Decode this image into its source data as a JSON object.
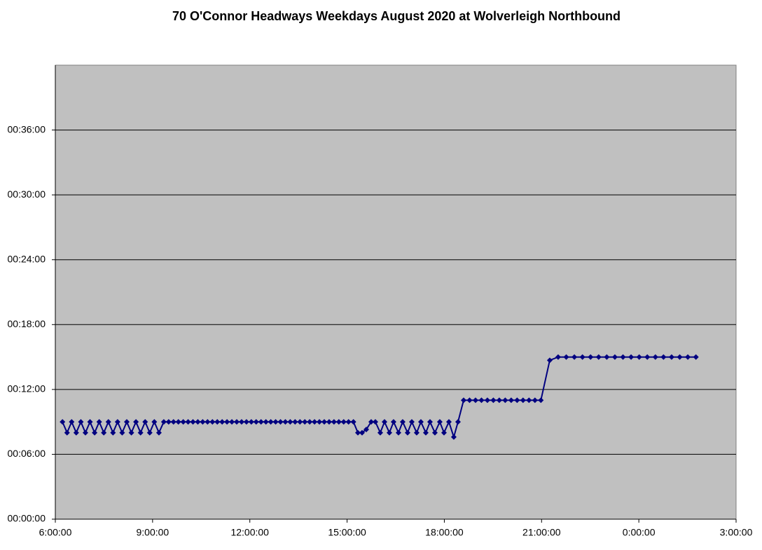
{
  "chart_data": {
    "type": "line",
    "title": "70 O'Connor Headways Weekdays August 2020 at Wolverleigh Northbound",
    "x": [
      6.22,
      6.362,
      6.503,
      6.645,
      6.787,
      6.928,
      7.07,
      7.212,
      7.354,
      7.495,
      7.637,
      7.779,
      7.92,
      8.062,
      8.204,
      8.346,
      8.487,
      8.629,
      8.771,
      8.912,
      9.054,
      9.196,
      9.346,
      9.496,
      9.646,
      9.796,
      9.946,
      10.096,
      10.246,
      10.396,
      10.546,
      10.696,
      10.846,
      10.996,
      11.146,
      11.296,
      11.446,
      11.596,
      11.746,
      11.896,
      12.046,
      12.196,
      12.346,
      12.496,
      12.646,
      12.796,
      12.946,
      13.096,
      13.246,
      13.396,
      13.546,
      13.696,
      13.846,
      13.996,
      14.146,
      14.296,
      14.446,
      14.596,
      14.746,
      14.896,
      15.046,
      15.196,
      15.333,
      15.462,
      15.592,
      15.743,
      15.873,
      16.024,
      16.154,
      16.305,
      16.434,
      16.586,
      16.715,
      16.866,
      16.996,
      17.147,
      17.277,
      17.428,
      17.558,
      17.709,
      17.86,
      17.99,
      18.141,
      18.292,
      18.422,
      18.595,
      18.778,
      18.962,
      19.145,
      19.328,
      19.512,
      19.695,
      19.878,
      20.062,
      20.245,
      20.428,
      20.612,
      20.795,
      20.978,
      21.252,
      21.511,
      21.761,
      22.011,
      22.261,
      22.511,
      22.761,
      23.011,
      23.261,
      23.511,
      23.761,
      24.011,
      24.261,
      24.511,
      24.761,
      25.011,
      25.261,
      25.511,
      25.761
    ],
    "values": [
      9,
      8,
      9,
      8,
      9,
      8,
      9,
      8,
      9,
      8,
      9,
      8,
      9,
      8,
      9,
      8,
      9,
      8,
      9,
      8,
      9,
      8,
      9,
      9,
      9,
      9,
      9,
      9,
      9,
      9,
      9,
      9,
      9,
      9,
      9,
      9,
      9,
      9,
      9,
      9,
      9,
      9,
      9,
      9,
      9,
      9,
      9,
      9,
      9,
      9,
      9,
      9,
      9,
      9,
      9,
      9,
      9,
      9,
      9,
      9,
      9,
      9,
      8,
      8,
      8.3,
      9,
      9,
      8,
      9,
      8,
      9,
      8,
      9,
      8,
      9,
      8,
      9,
      8,
      9,
      8,
      9,
      8,
      9,
      7.6,
      9,
      11,
      11,
      11,
      11,
      11,
      11,
      11,
      11,
      11,
      11,
      11,
      11,
      11,
      11,
      14.7,
      15,
      15,
      15,
      15,
      15,
      15,
      15,
      15,
      15,
      15,
      15,
      15,
      15,
      15,
      15,
      15,
      15,
      15
    ],
    "color": "#000080",
    "marker": "diamond",
    "plot_background": "#c0c0c0",
    "xlim": [
      6,
      27
    ],
    "xticks": [
      {
        "value": 6,
        "label": "6:00:00"
      },
      {
        "value": 9,
        "label": "9:00:00"
      },
      {
        "value": 12,
        "label": "12:00:00"
      },
      {
        "value": 15,
        "label": "15:00:00"
      },
      {
        "value": 18,
        "label": "18:00:00"
      },
      {
        "value": 21,
        "label": "21:00:00"
      },
      {
        "value": 24,
        "label": "0:00:00"
      },
      {
        "value": 27,
        "label": "3:00:00"
      }
    ],
    "ylim": [
      0,
      42
    ],
    "yticks": [
      {
        "value": 0,
        "label": "00:00:00"
      },
      {
        "value": 6,
        "label": "00:06:00"
      },
      {
        "value": 12,
        "label": "00:12:00"
      },
      {
        "value": 18,
        "label": "00:18:00"
      },
      {
        "value": 24,
        "label": "00:24:00"
      },
      {
        "value": 30,
        "label": "00:30:00"
      },
      {
        "value": 36,
        "label": "00:36:00"
      }
    ],
    "grid": true
  }
}
